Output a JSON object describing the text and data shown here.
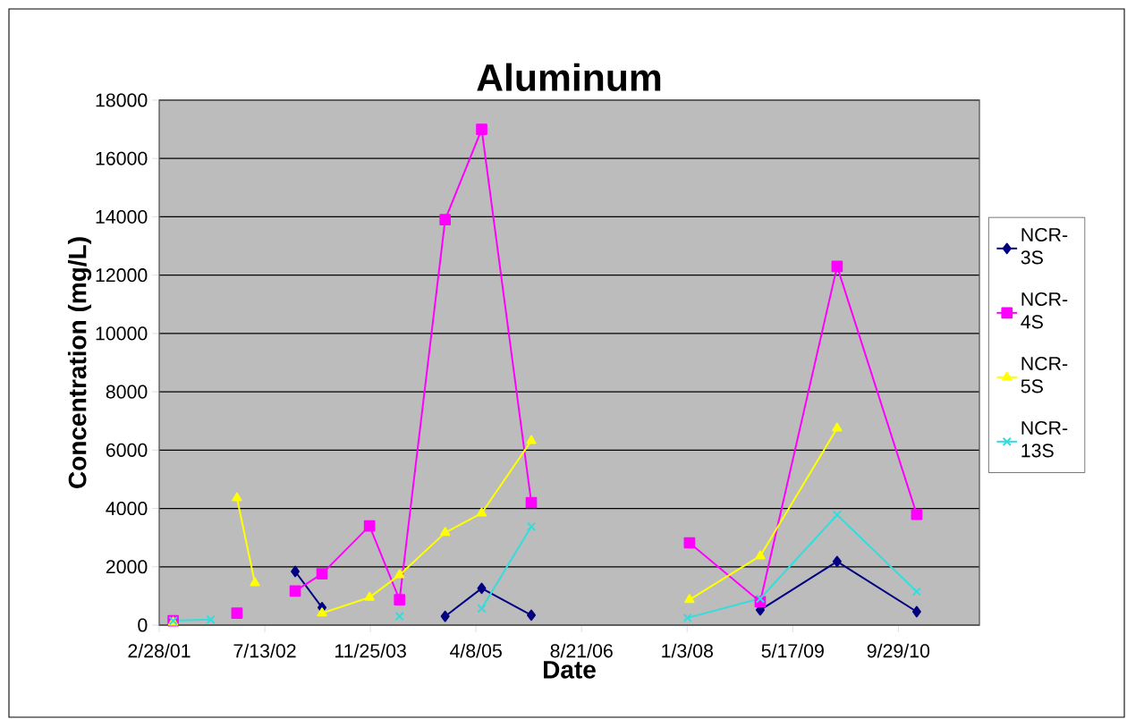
{
  "chart_data": {
    "type": "line",
    "title": "Aluminum",
    "xlabel": "Date",
    "ylabel": "Concentration (mg/L)",
    "xlim": [
      "2001-02-28",
      "2011-10-18"
    ],
    "xticks": [
      {
        "value": "2001-02-28",
        "label": "2/28/01"
      },
      {
        "value": "2002-07-13",
        "label": "7/13/02"
      },
      {
        "value": "2003-11-25",
        "label": "11/25/03"
      },
      {
        "value": "2005-04-08",
        "label": "4/8/05"
      },
      {
        "value": "2006-08-21",
        "label": "8/21/06"
      },
      {
        "value": "2008-01-03",
        "label": "1/3/08"
      },
      {
        "value": "2009-05-17",
        "label": "5/17/09"
      },
      {
        "value": "2010-09-29",
        "label": "9/29/10"
      }
    ],
    "ylim": [
      0,
      18000
    ],
    "yticks": [
      0,
      2000,
      4000,
      6000,
      8000,
      10000,
      12000,
      14000,
      16000,
      18000
    ],
    "grid": "y",
    "legend": "right",
    "series": [
      {
        "name": "NCR-3S",
        "color": "#000080",
        "marker": "diamond",
        "x": [
          "2002-12-04",
          "2003-04-10",
          "2004-01-01",
          "2004-11-13",
          "2005-05-05",
          "2005-12-26",
          "2007-06-01",
          "2008-12-14",
          "2009-12-13",
          "2010-12-25"
        ],
        "values": [
          1840,
          600,
          null,
          300,
          1260,
          340,
          null,
          520,
          2180,
          460
        ]
      },
      {
        "name": "NCR-4S",
        "color": "#ff00ff",
        "marker": "square",
        "x": [
          "2001-05-05",
          "2001-10-01",
          "2002-03-03",
          "2002-08-01",
          "2002-12-04",
          "2003-04-10",
          "2003-11-21",
          "2004-04-11",
          "2004-11-13",
          "2005-05-05",
          "2005-12-26",
          "2007-01-01",
          "2008-01-14",
          "2008-12-14",
          "2009-12-13",
          "2010-12-25"
        ],
        "values": [
          150,
          null,
          410,
          null,
          1170,
          1760,
          3400,
          870,
          13900,
          17000,
          4200,
          null,
          2820,
          800,
          12300,
          3800
        ]
      },
      {
        "name": "NCR-5S",
        "color": "#ffff00",
        "marker": "triangle",
        "x": [
          "2001-05-05",
          "2001-10-01",
          "2002-03-03",
          "2002-05-27",
          "2002-10-01",
          "2003-04-10",
          "2003-11-21",
          "2004-04-11",
          "2004-11-13",
          "2005-05-05",
          "2005-12-26",
          "2007-01-01",
          "2008-01-14",
          "2008-12-14",
          "2009-12-13"
        ],
        "values": [
          100,
          null,
          4360,
          1450,
          null,
          410,
          950,
          1720,
          3170,
          3840,
          6320,
          null,
          870,
          2370,
          6750
        ]
      },
      {
        "name": "NCR-13S",
        "color": "#33dddd",
        "marker": "cross",
        "x": [
          "2001-05-05",
          "2001-10-30",
          "2003-01-01",
          "2004-04-11",
          "2004-10-01",
          "2005-05-05",
          "2005-12-26",
          "2007-01-01",
          "2008-01-05",
          "2008-12-14",
          "2009-12-13",
          "2010-12-25"
        ],
        "values": [
          150,
          190,
          null,
          300,
          null,
          570,
          3380,
          null,
          250,
          910,
          3780,
          1150
        ]
      }
    ]
  }
}
